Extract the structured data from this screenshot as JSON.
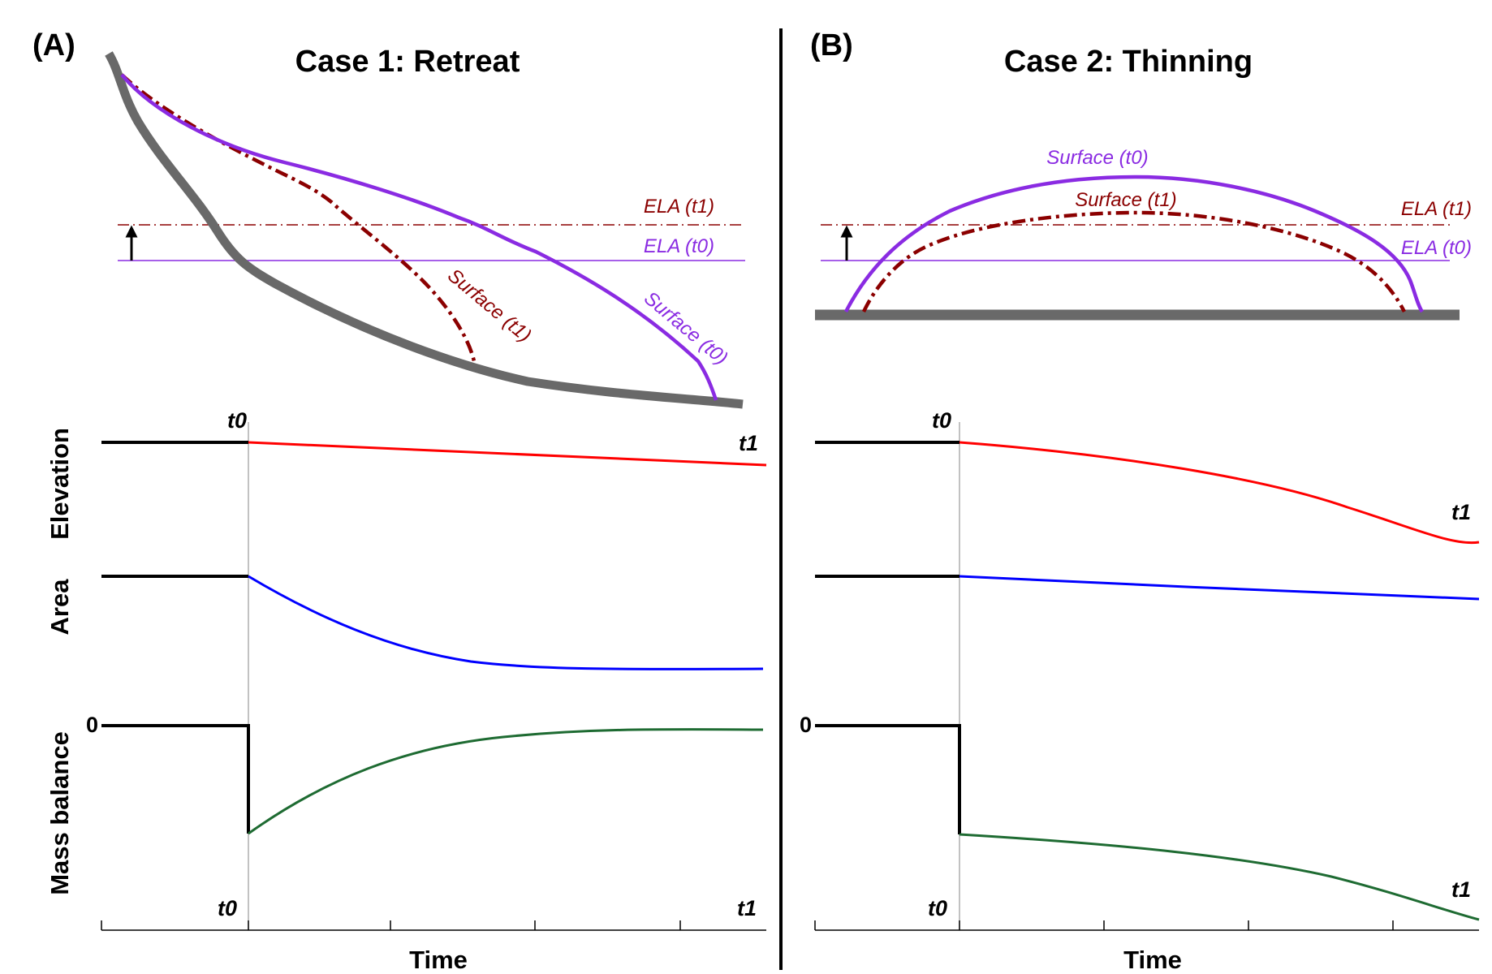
{
  "panels": [
    {
      "id": "A",
      "panel_label": "(A)",
      "title": "Case 1: Retreat",
      "schematic": {
        "ela_t1_label": "ELA (t1)",
        "ela_t0_label": "ELA (t0)",
        "surface_t0_label": "Surface (t0)",
        "surface_t1_label": "Surface (t1)"
      },
      "y_labels": [
        "Elevation",
        "Area",
        "Mass balance"
      ],
      "zero_label": "0",
      "t0_top": "t0",
      "t1_top": "t1",
      "t0_bottom": "t0",
      "t1_bottom": "t1",
      "x_axis_label": "Time"
    },
    {
      "id": "B",
      "panel_label": "(B)",
      "title": "Case 2: Thinning",
      "schematic": {
        "ela_t1_label": "ELA (t1)",
        "ela_t0_label": "ELA (t0)",
        "surface_t0_label": "Surface (t0)",
        "surface_t1_label": "Surface (t1)"
      },
      "zero_label": "0",
      "t0_top": "t0",
      "t1_top": "t1",
      "t0_bottom": "t0",
      "t1_bottom": "t1",
      "x_axis_label": "Time"
    }
  ],
  "colors": {
    "bed": "#696969",
    "surface_t0": "#8a2be2",
    "surface_t1": "#8b0000",
    "elevation": "#ff0000",
    "area": "#0000ff",
    "mass_balance": "#1e6b32",
    "initial_state": "#000000"
  }
}
